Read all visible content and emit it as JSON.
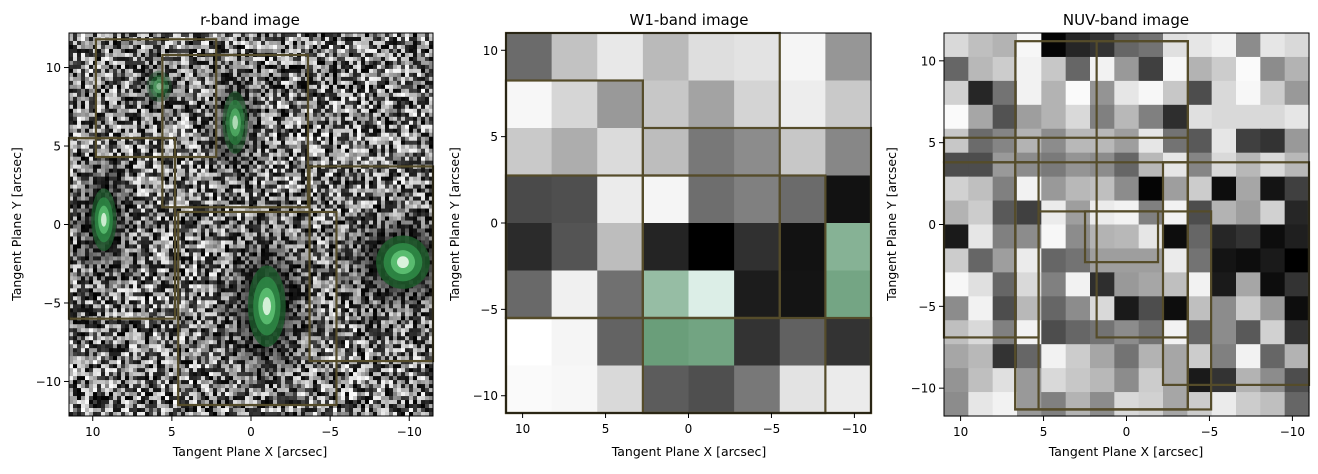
{
  "chart_data": [
    {
      "type": "heatmap",
      "title": "r-band image",
      "xlabel": "Tangent Plane X [arcsec]",
      "ylabel": "Tangent Plane Y [arcsec]",
      "xlim": [
        11.5,
        -11.5
      ],
      "ylim": [
        -12.2,
        12.2
      ],
      "xticks": [
        10,
        5,
        0,
        -5,
        -10
      ],
      "yticks": [
        10,
        5,
        0,
        -5,
        -10
      ],
      "tick_labels": [
        "10",
        "5",
        "0",
        "−5",
        "−10"
      ],
      "grid": false,
      "colormap": "greyscale noise with green-highlighted sources",
      "sources": [
        {
          "x": 9.3,
          "y": 0.3,
          "sx": 0.8,
          "sy": 2.0,
          "peak": 0.9
        },
        {
          "x": -1.0,
          "y": -5.2,
          "sx": 1.2,
          "sy": 2.6,
          "peak": 0.95
        },
        {
          "x": -9.6,
          "y": -2.4,
          "sx": 1.7,
          "sy": 1.7,
          "peak": 1.0
        },
        {
          "x": 1.0,
          "y": 6.5,
          "sx": 0.8,
          "sy": 2.0,
          "peak": 0.7
        },
        {
          "x": 5.8,
          "y": 8.8,
          "sx": 0.8,
          "sy": 1.0,
          "peak": 0.45
        }
      ],
      "boxes": [
        {
          "x0": 9.8,
          "x1": 2.2,
          "y0": 11.8,
          "y1": 4.3
        },
        {
          "x0": 5.6,
          "x1": -3.6,
          "y0": 10.8,
          "y1": 1.1
        },
        {
          "x0": 11.5,
          "x1": 4.8,
          "y0": 5.5,
          "y1": -6.0
        },
        {
          "x0": 4.6,
          "x1": -5.4,
          "y0": 0.8,
          "y1": -11.5
        },
        {
          "x0": -3.7,
          "x1": -11.5,
          "y0": 3.7,
          "y1": -8.7
        }
      ]
    },
    {
      "type": "heatmap",
      "title": "W1-band image",
      "xlabel": "Tangent Plane X [arcsec]",
      "ylabel": "Tangent Plane Y [arcsec]",
      "xlim": [
        11.0,
        -11.0
      ],
      "ylim": [
        -11.0,
        11.0
      ],
      "xticks": [
        10,
        5,
        0,
        -5,
        -10
      ],
      "yticks": [
        10,
        5,
        0,
        -5,
        -10
      ],
      "tick_labels": [
        "10",
        "5",
        "0",
        "−5",
        "−10"
      ],
      "grid": false,
      "nrows": 8,
      "ncols": 8,
      "pixels": [
        [
          0.42,
          0.76,
          0.91,
          0.73,
          0.87,
          0.89,
          0.96,
          0.59
        ],
        [
          0.97,
          0.84,
          0.6,
          0.78,
          0.64,
          0.83,
          0.93,
          0.79
        ],
        [
          0.79,
          0.68,
          0.86,
          0.74,
          0.47,
          0.55,
          0.78,
          0.53
        ],
        [
          0.29,
          0.31,
          0.92,
          0.96,
          0.43,
          0.5,
          0.42,
          0.07
        ],
        [
          0.17,
          0.33,
          0.74,
          0.14,
          0.0,
          0.19,
          0.07,
          0.52
        ],
        [
          0.41,
          0.94,
          0.44,
          0.6,
          0.95,
          0.11,
          0.08,
          0.43
        ],
        [
          1.0,
          0.96,
          0.39,
          0.38,
          0.42,
          0.2,
          0.38,
          0.2
        ],
        [
          0.98,
          0.97,
          0.85,
          0.36,
          0.31,
          0.47,
          0.89,
          0.92
        ]
      ],
      "green_cells": [
        [
          4,
          7
        ],
        [
          5,
          3
        ],
        [
          5,
          4
        ],
        [
          5,
          7
        ],
        [
          6,
          3
        ],
        [
          6,
          4
        ]
      ],
      "boxes": [
        {
          "x0": 11.0,
          "x1": -5.5,
          "y0": 11.0,
          "y1": -5.5
        },
        {
          "x0": 11.0,
          "x1": 2.75,
          "y0": 8.25,
          "y1": -5.5
        },
        {
          "x0": 2.75,
          "x1": -11.0,
          "y0": 5.5,
          "y1": -11.0
        },
        {
          "x0": 11.0,
          "x1": -8.25,
          "y0": 2.75,
          "y1": -11.0
        },
        {
          "x0": 2.75,
          "x1": -5.5,
          "y0": 2.75,
          "y1": -5.5
        },
        {
          "x0": 11.0,
          "x1": -11.0,
          "y0": -5.5,
          "y1": -11.0
        }
      ]
    },
    {
      "type": "heatmap",
      "title": "NUV-band image",
      "xlabel": "Tangent Plane X [arcsec]",
      "ylabel": "Tangent Plane Y [arcsec]",
      "xlim": [
        11.0,
        -11.0
      ],
      "ylim": [
        -11.7,
        11.7
      ],
      "xticks": [
        10,
        5,
        0,
        -5,
        -10
      ],
      "yticks": [
        10,
        5,
        0,
        -5,
        -10
      ],
      "tick_labels": [
        "10",
        "5",
        "0",
        "−5",
        "−10"
      ],
      "grid": false,
      "nrows": 16,
      "ncols": 15,
      "pixels": [
        [
          0.85,
          0.75,
          0.7,
          0.97,
          0.02,
          0.15,
          0.2,
          0.4,
          0.45,
          0.88,
          0.9,
          0.95,
          0.55,
          0.9,
          0.85
        ],
        [
          0.4,
          0.72,
          0.8,
          0.95,
          0.78,
          0.4,
          0.95,
          0.6,
          0.25,
          0.97,
          0.7,
          0.8,
          0.98,
          0.55,
          0.7
        ],
        [
          0.82,
          0.15,
          0.45,
          0.95,
          0.7,
          0.98,
          0.58,
          0.9,
          0.97,
          0.78,
          0.3,
          0.85,
          0.97,
          0.8,
          0.6
        ],
        [
          0.98,
          0.65,
          0.32,
          0.62,
          0.7,
          0.85,
          0.5,
          0.72,
          0.5,
          0.18,
          0.88,
          0.85,
          0.85,
          0.85,
          0.9
        ],
        [
          0.78,
          0.42,
          0.52,
          0.7,
          0.55,
          0.72,
          0.72,
          0.62,
          0.9,
          0.45,
          0.35,
          0.9,
          0.25,
          0.2,
          0.6
        ],
        [
          0.3,
          0.3,
          0.6,
          0.55,
          0.48,
          0.58,
          0.55,
          0.4,
          0.72,
          0.9,
          0.52,
          0.85,
          0.72,
          0.85,
          0.72
        ],
        [
          0.82,
          0.75,
          0.5,
          0.95,
          0.6,
          0.72,
          0.75,
          0.55,
          0.02,
          0.62,
          0.8,
          0.05,
          0.65,
          0.08,
          0.25
        ],
        [
          0.7,
          0.8,
          0.35,
          0.25,
          0.92,
          0.62,
          0.92,
          0.95,
          0.5,
          0.95,
          0.3,
          0.7,
          0.62,
          0.82,
          0.15
        ],
        [
          0.1,
          0.9,
          0.5,
          0.55,
          0.97,
          0.55,
          0.7,
          0.72,
          0.9,
          0.05,
          0.4,
          0.15,
          0.2,
          0.05,
          0.12
        ],
        [
          0.8,
          0.4,
          0.62,
          0.92,
          0.4,
          0.45,
          0.62,
          0.62,
          0.62,
          0.92,
          0.45,
          0.08,
          0.05,
          0.1,
          0.0
        ],
        [
          0.97,
          0.88,
          0.4,
          0.85,
          0.5,
          0.95,
          0.18,
          0.6,
          0.65,
          0.75,
          0.95,
          0.1,
          0.65,
          0.05,
          0.2
        ],
        [
          0.55,
          0.95,
          0.3,
          0.72,
          0.4,
          0.55,
          0.85,
          0.1,
          0.3,
          0.05,
          0.75,
          0.55,
          0.8,
          0.6,
          0.05
        ],
        [
          0.75,
          0.85,
          0.5,
          0.95,
          0.3,
          0.4,
          0.45,
          0.55,
          0.45,
          0.95,
          0.4,
          0.55,
          0.35,
          0.82,
          0.2
        ],
        [
          0.65,
          0.72,
          0.2,
          0.4,
          0.95,
          0.8,
          0.65,
          0.45,
          0.7,
          0.65,
          0.8,
          0.5,
          0.95,
          0.4,
          0.7
        ],
        [
          0.58,
          0.75,
          0.88,
          0.6,
          0.85,
          0.78,
          0.72,
          0.55,
          0.8,
          0.65,
          0.1,
          0.2,
          0.7,
          0.55,
          0.3
        ],
        [
          0.55,
          0.9,
          0.95,
          0.6,
          0.5,
          0.7,
          0.55,
          0.85,
          0.82,
          0.65,
          0.8,
          0.92,
          0.8,
          0.75,
          0.4
        ]
      ],
      "boxes": [
        {
          "x0": 6.7,
          "x1": -3.7,
          "y0": 11.2,
          "y1": -11.3
        },
        {
          "x0": 11.0,
          "x1": 5.3,
          "y0": 5.3,
          "y1": 3.8
        },
        {
          "x0": 11.0,
          "x1": 5.3,
          "y0": 3.8,
          "y1": -6.9
        },
        {
          "x0": 6.7,
          "x1": -3.7,
          "y0": 5.3,
          "y1": -11.3
        },
        {
          "x0": 6.7,
          "x1": -3.7,
          "y0": 3.8,
          "y1": -11.3
        },
        {
          "x0": 5.3,
          "x1": -5.1,
          "y0": 0.8,
          "y1": -11.3
        },
        {
          "x0": 2.5,
          "x1": -1.9,
          "y0": 0.8,
          "y1": -2.3
        },
        {
          "x0": -2.2,
          "x1": -11.0,
          "y0": 3.8,
          "y1": -9.8
        },
        {
          "x0": 1.8,
          "x1": -3.7,
          "y0": 11.2,
          "y1": -6.9
        }
      ]
    }
  ]
}
